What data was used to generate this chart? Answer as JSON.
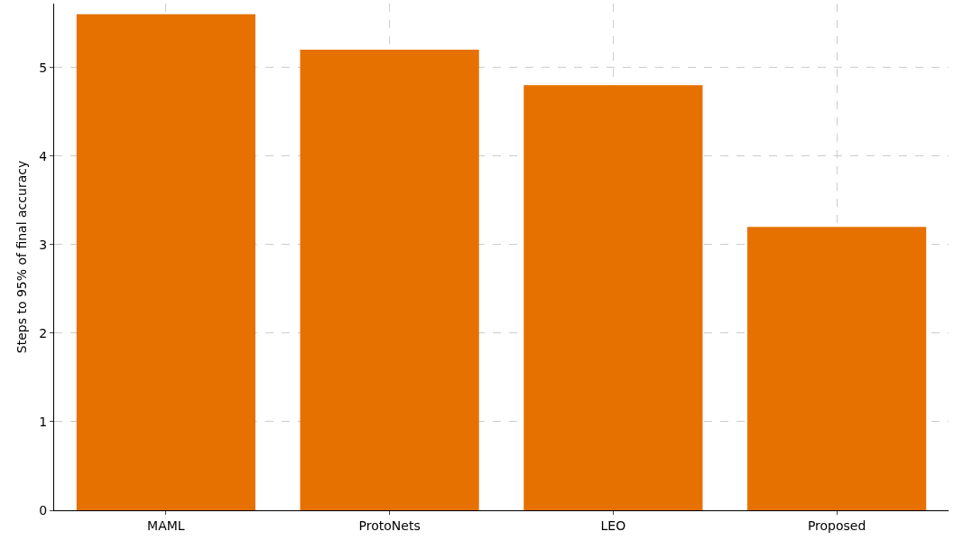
{
  "chart_data": {
    "type": "bar",
    "ylabel": "Steps to 95% of final accuracy",
    "categories": [
      "MAML",
      "ProtoNets",
      "LEO",
      "Proposed"
    ],
    "values": [
      5.6,
      5.2,
      4.8,
      3.2
    ],
    "color": "#e67100",
    "ylim": [
      0,
      5.72
    ],
    "yticks": [
      0,
      1,
      2,
      3,
      4,
      5
    ],
    "grid": true
  }
}
